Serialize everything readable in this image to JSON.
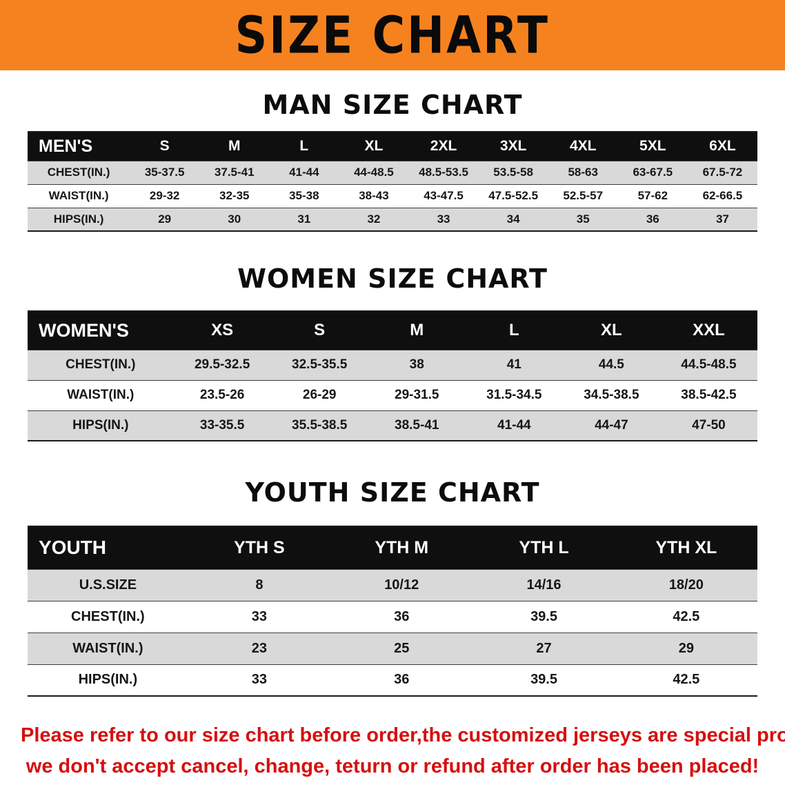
{
  "banner": {
    "title": "SIZE CHART"
  },
  "colors": {
    "banner_bg": "#F6821F",
    "header_bg": "#0f0f0f",
    "stripe": "#d9d9d9",
    "disclaimer_red": "#d60f0f"
  },
  "men": {
    "heading": "MAN SIZE CHART",
    "table": {
      "header": [
        "MEN'S",
        "S",
        "M",
        "L",
        "XL",
        "2XL",
        "3XL",
        "4XL",
        "5XL",
        "6XL"
      ],
      "rows": [
        [
          "CHEST(IN.)",
          "35-37.5",
          "37.5-41",
          "41-44",
          "44-48.5",
          "48.5-53.5",
          "53.5-58",
          "58-63",
          "63-67.5",
          "67.5-72"
        ],
        [
          "WAIST(IN.)",
          "29-32",
          "32-35",
          "35-38",
          "38-43",
          "43-47.5",
          "47.5-52.5",
          "52.5-57",
          "57-62",
          "62-66.5"
        ],
        [
          "HIPS(IN.)",
          "29",
          "30",
          "31",
          "32",
          "33",
          "34",
          "35",
          "36",
          "37"
        ]
      ]
    }
  },
  "women": {
    "heading": "WOMEN SIZE CHART",
    "table": {
      "header": [
        "WOMEN'S",
        "XS",
        "S",
        "M",
        "L",
        "XL",
        "XXL"
      ],
      "rows": [
        [
          "CHEST(IN.)",
          "29.5-32.5",
          "32.5-35.5",
          "38",
          "41",
          "44.5",
          "44.5-48.5"
        ],
        [
          "WAIST(IN.)",
          "23.5-26",
          "26-29",
          "29-31.5",
          "31.5-34.5",
          "34.5-38.5",
          "38.5-42.5"
        ],
        [
          "HIPS(IN.)",
          "33-35.5",
          "35.5-38.5",
          "38.5-41",
          "41-44",
          "44-47",
          "47-50"
        ]
      ]
    }
  },
  "youth": {
    "heading": "YOUTH SIZE CHART",
    "table": {
      "header": [
        "YOUTH",
        "YTH S",
        "YTH M",
        "YTH L",
        "YTH XL"
      ],
      "rows": [
        [
          "U.S.SIZE",
          "8",
          "10/12",
          "14/16",
          "18/20"
        ],
        [
          "CHEST(IN.)",
          "33",
          "36",
          "39.5",
          "42.5"
        ],
        [
          "WAIST(IN.)",
          "23",
          "25",
          "27",
          "29"
        ],
        [
          "HIPS(IN.)",
          "33",
          "36",
          "39.5",
          "42.5"
        ]
      ]
    }
  },
  "disclaimer": {
    "line1": "Please refer to our size chart before order,the customized jerseys are special products,",
    "line2": "we don't accept cancel, change, teturn or refund after order has been placed!"
  }
}
